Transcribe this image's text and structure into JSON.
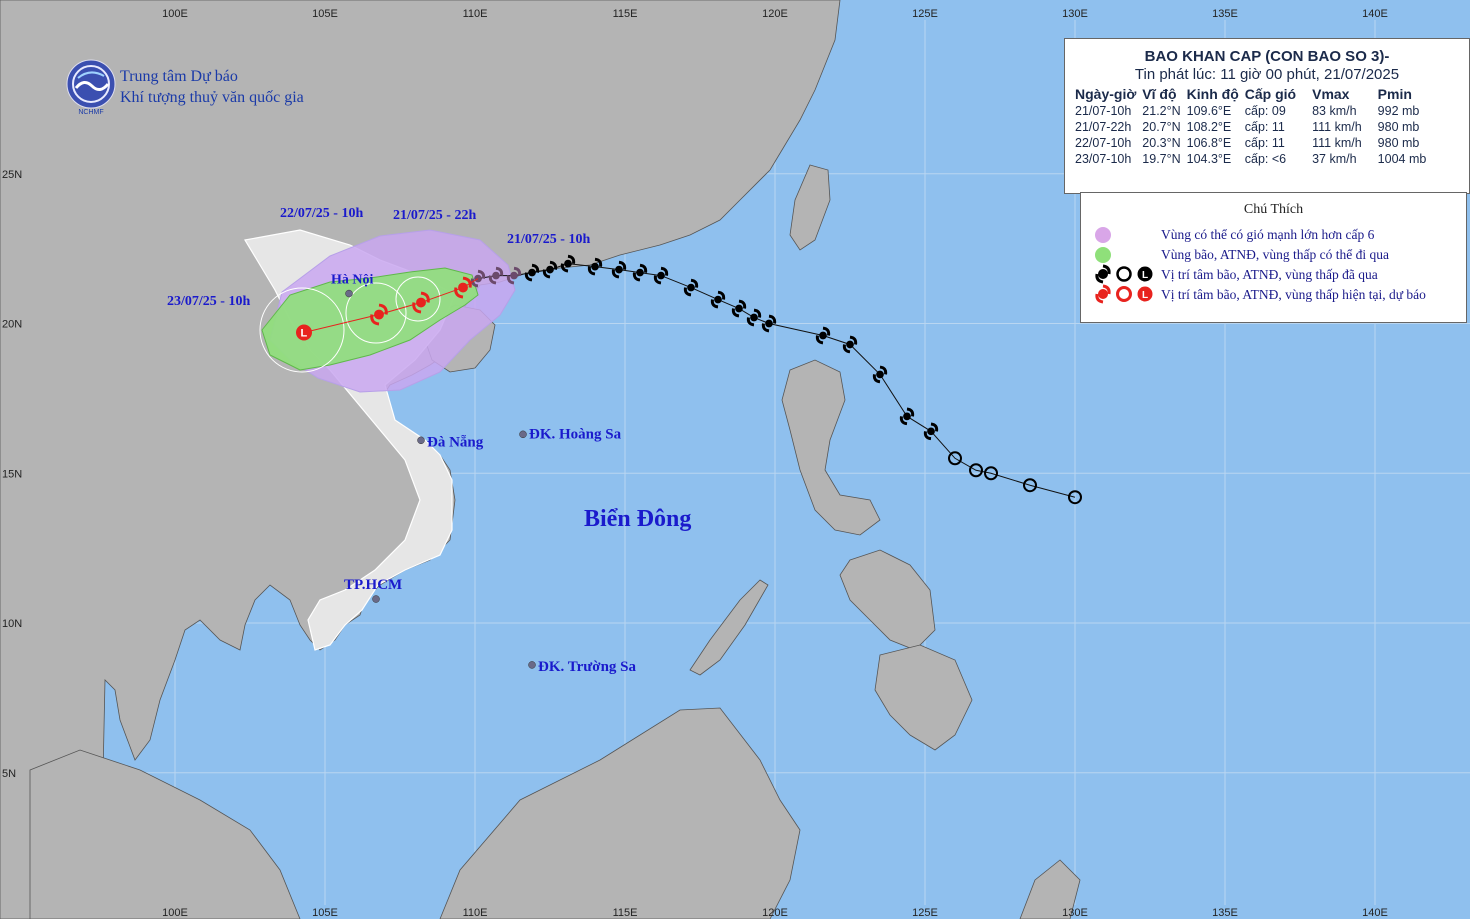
{
  "agency": {
    "name_line1": "Trung tâm Dự báo",
    "name_line2": "Khí tượng thuỷ văn quốc gia",
    "logo_text": "NCHMF"
  },
  "forecast": {
    "title": "BAO KHAN CAP (CON BAO SO 3)-",
    "issued": "Tin phát lúc: 11 giờ 00 phút, 21/07/2025",
    "headers": [
      "Ngày-giờ",
      "Vĩ độ",
      "Kinh độ",
      "Cấp gió",
      "Vmax",
      "Pmin"
    ],
    "rows": [
      [
        "21/07-10h",
        "21.2°N",
        "109.6°E",
        "cấp: 09",
        "83 km/h",
        "992 mb"
      ],
      [
        "21/07-22h",
        "20.7°N",
        "108.2°E",
        "cấp: 11",
        "111 km/h",
        "980 mb"
      ],
      [
        "22/07-10h",
        "20.3°N",
        "106.8°E",
        "cấp: 11",
        "111 km/h",
        "980 mb"
      ],
      [
        "23/07-10h",
        "19.7°N",
        "104.3°E",
        "cấp: <6",
        "37 km/h",
        "1004 mb"
      ]
    ]
  },
  "legend": {
    "title": "Chú Thích",
    "items": [
      "Vùng có thể có gió mạnh lớn hơn cấp 6",
      "Vùng bão, ATNĐ, vùng thấp có thể đi qua",
      "Vị trí tâm bão, ATNĐ, vùng thấp đã qua",
      "Vị trí tâm bão, ATNĐ, vùng thấp hiện tại, dự báo"
    ],
    "colors": {
      "strong_wind": "#d9a6e8",
      "storm_zone": "#8fe07a",
      "past": "#000000",
      "forecast": "#e8231e"
    }
  },
  "axes": {
    "lon_ticks": [
      "100E",
      "105E",
      "110E",
      "115E",
      "120E",
      "125E",
      "130E",
      "135E",
      "140E"
    ],
    "lat_ticks": [
      "25N",
      "20N",
      "15N",
      "10N",
      "5N"
    ]
  },
  "places": [
    {
      "name": "Hà Nội",
      "lon": 105.8,
      "lat": 21.0
    },
    {
      "name": "Đà Nẵng",
      "lon": 108.2,
      "lat": 16.1
    },
    {
      "name": "ĐK. Hoàng Sa",
      "lon": 111.6,
      "lat": 16.3
    },
    {
      "name": "TP.HCM",
      "lon": 106.7,
      "lat": 10.8
    },
    {
      "name": "ĐK. Trường Sa",
      "lon": 111.9,
      "lat": 8.6
    }
  ],
  "sea_label": "Biển Đông",
  "time_labels": [
    "21/07/25 - 10h",
    "21/07/25 - 22h",
    "22/07/25 - 10h",
    "23/07/25 - 10h"
  ],
  "track_past": [
    [
      130.0,
      14.2
    ],
    [
      128.5,
      14.6
    ],
    [
      127.2,
      15.0
    ],
    [
      126.7,
      15.1
    ],
    [
      126.0,
      15.5
    ],
    [
      125.2,
      16.4
    ],
    [
      124.4,
      16.9
    ],
    [
      123.5,
      18.3
    ],
    [
      122.5,
      19.3
    ],
    [
      121.6,
      19.6
    ],
    [
      119.8,
      20.0
    ],
    [
      119.3,
      20.2
    ],
    [
      118.8,
      20.5
    ],
    [
      118.1,
      20.8
    ],
    [
      117.2,
      21.2
    ],
    [
      116.2,
      21.6
    ],
    [
      115.5,
      21.7
    ],
    [
      114.8,
      21.8
    ],
    [
      114.0,
      21.9
    ],
    [
      113.1,
      22.0
    ],
    [
      112.5,
      21.8
    ],
    [
      111.9,
      21.7
    ],
    [
      111.3,
      21.6
    ],
    [
      110.7,
      21.6
    ],
    [
      110.1,
      21.5
    ]
  ],
  "track_forecast": [
    [
      109.6,
      21.2
    ],
    [
      108.2,
      20.7
    ],
    [
      106.8,
      20.3
    ],
    [
      104.3,
      19.7
    ]
  ]
}
